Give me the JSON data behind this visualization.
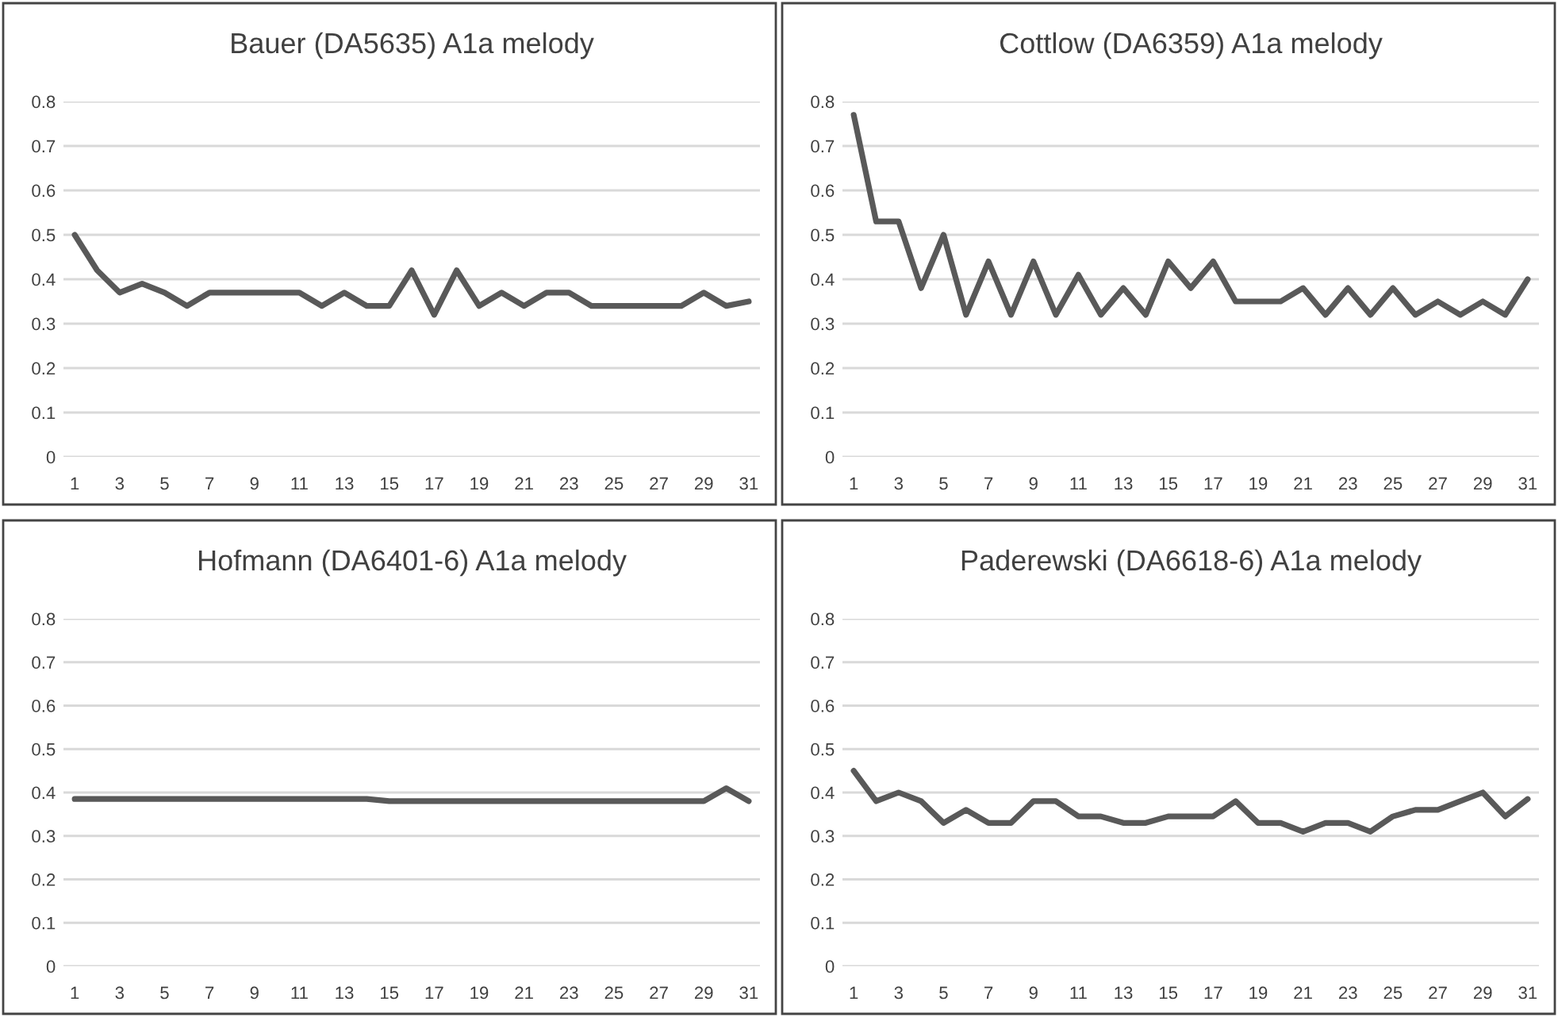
{
  "chart_data": [
    {
      "type": "line",
      "title": "Bauer (DA5635) A1a melody",
      "categories": [
        "1",
        null,
        "3",
        null,
        "5",
        null,
        "7",
        null,
        "9",
        null,
        "11",
        null,
        "13",
        null,
        "15",
        null,
        "17",
        null,
        "19",
        null,
        "21",
        null,
        "23",
        null,
        "25",
        null,
        "27",
        null,
        "29",
        null,
        "31"
      ],
      "series": [
        {
          "color": "#595959",
          "values": [
            0.5,
            0.42,
            0.37,
            0.39,
            0.37,
            0.34,
            0.37,
            0.37,
            0.37,
            0.37,
            0.37,
            0.34,
            0.37,
            0.34,
            0.34,
            0.42,
            0.32,
            0.42,
            0.34,
            0.37,
            0.34,
            0.37,
            0.37,
            0.34,
            0.34,
            0.34,
            0.34,
            0.34,
            0.37,
            0.34,
            0.35
          ]
        }
      ],
      "ylim": [
        0,
        0.8
      ],
      "yticks": [
        0,
        0.1,
        0.2,
        0.3,
        0.4,
        0.5,
        0.6,
        0.7,
        0.8
      ],
      "grid": "y",
      "marker": "none",
      "line_style": "solid"
    },
    {
      "type": "line",
      "title": "Cottlow (DA6359) A1a melody",
      "categories": [
        "1",
        null,
        "3",
        null,
        "5",
        null,
        "7",
        null,
        "9",
        null,
        "11",
        null,
        "13",
        null,
        "15",
        null,
        "17",
        null,
        "19",
        null,
        "21",
        null,
        "23",
        null,
        "25",
        null,
        "27",
        null,
        "29",
        null,
        "31"
      ],
      "series": [
        {
          "color": "#595959",
          "values": [
            0.77,
            0.53,
            0.53,
            0.38,
            0.5,
            0.32,
            0.44,
            0.32,
            0.44,
            0.32,
            0.41,
            0.32,
            0.38,
            0.32,
            0.44,
            0.38,
            0.44,
            0.35,
            0.35,
            0.35,
            0.38,
            0.32,
            0.38,
            0.32,
            0.38,
            0.32,
            0.35,
            0.32,
            0.35,
            0.32,
            0.4
          ]
        }
      ],
      "ylim": [
        0,
        0.8
      ],
      "yticks": [
        0,
        0.1,
        0.2,
        0.3,
        0.4,
        0.5,
        0.6,
        0.7,
        0.8
      ],
      "grid": "y",
      "marker": "none",
      "line_style": "solid"
    },
    {
      "type": "line",
      "title": "Hofmann (DA6401-6) A1a melody",
      "categories": [
        "1",
        null,
        "3",
        null,
        "5",
        null,
        "7",
        null,
        "9",
        null,
        "11",
        null,
        "13",
        null,
        "15",
        null,
        "17",
        null,
        "19",
        null,
        "21",
        null,
        "23",
        null,
        "25",
        null,
        "27",
        null,
        "29",
        null,
        "31"
      ],
      "series": [
        {
          "color": "#595959",
          "values": [
            0.385,
            0.385,
            0.385,
            0.385,
            0.385,
            0.385,
            0.385,
            0.385,
            0.385,
            0.385,
            0.385,
            0.385,
            0.385,
            0.385,
            0.38,
            0.38,
            0.38,
            0.38,
            0.38,
            0.38,
            0.38,
            0.38,
            0.38,
            0.38,
            0.38,
            0.38,
            0.38,
            0.38,
            0.38,
            0.41,
            0.38
          ]
        }
      ],
      "ylim": [
        0,
        0.8
      ],
      "yticks": [
        0,
        0.1,
        0.2,
        0.3,
        0.4,
        0.5,
        0.6,
        0.7,
        0.8
      ],
      "grid": "y",
      "marker": "none",
      "line_style": "solid"
    },
    {
      "type": "line",
      "title": "Paderewski (DA6618-6) A1a melody",
      "categories": [
        "1",
        null,
        "3",
        null,
        "5",
        null,
        "7",
        null,
        "9",
        null,
        "11",
        null,
        "13",
        null,
        "15",
        null,
        "17",
        null,
        "19",
        null,
        "21",
        null,
        "23",
        null,
        "25",
        null,
        "27",
        null,
        "29",
        null,
        "31"
      ],
      "series": [
        {
          "color": "#595959",
          "values": [
            0.45,
            0.38,
            0.4,
            0.38,
            0.33,
            0.36,
            0.33,
            0.33,
            0.38,
            0.38,
            0.345,
            0.345,
            0.33,
            0.33,
            0.345,
            0.345,
            0.345,
            0.38,
            0.33,
            0.33,
            0.31,
            0.33,
            0.33,
            0.31,
            0.345,
            0.36,
            0.36,
            0.38,
            0.4,
            0.345,
            0.385
          ]
        }
      ],
      "ylim": [
        0,
        0.8
      ],
      "yticks": [
        0,
        0.1,
        0.2,
        0.3,
        0.4,
        0.5,
        0.6,
        0.7,
        0.8
      ],
      "grid": "y",
      "marker": "none",
      "line_style": "solid"
    }
  ]
}
